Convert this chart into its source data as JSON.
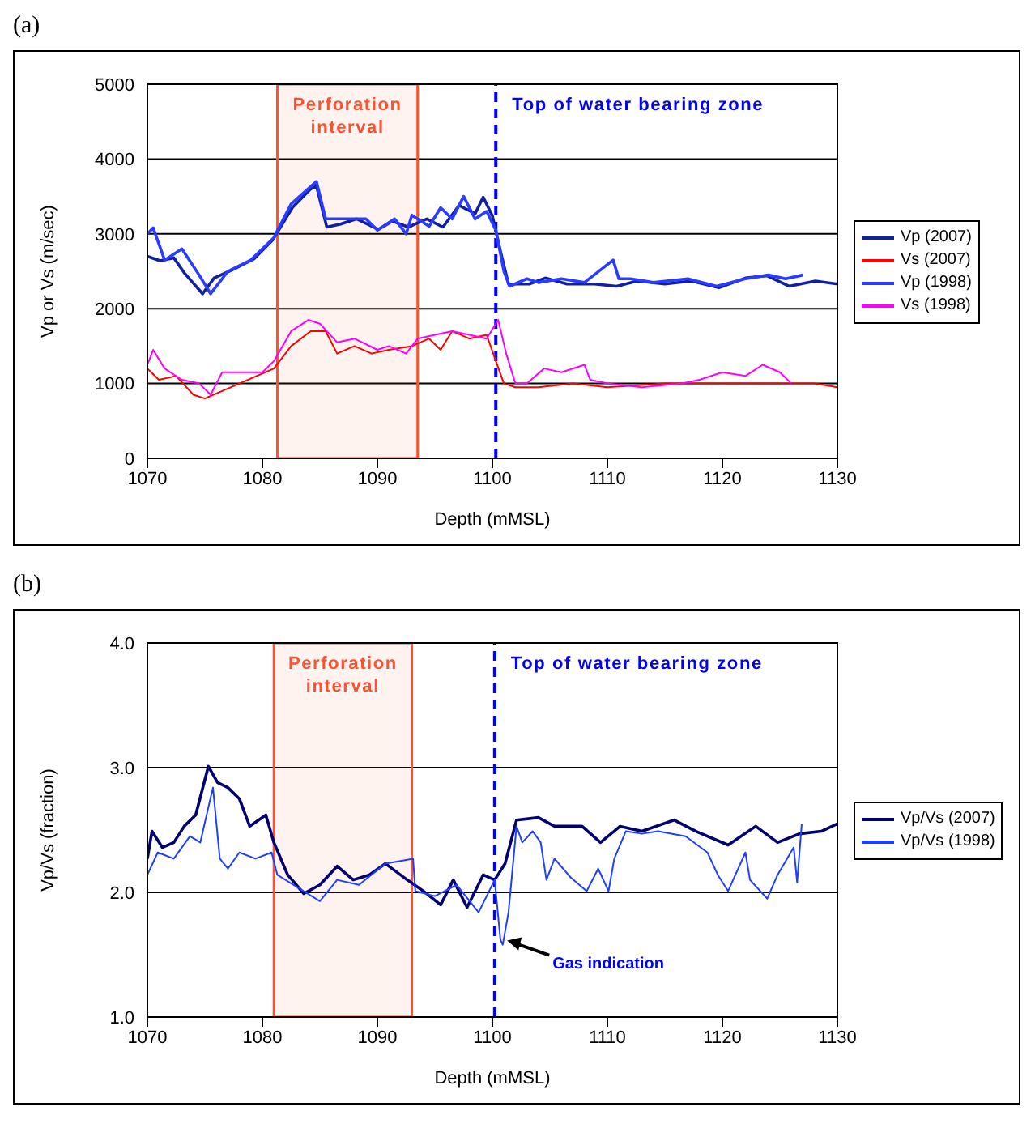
{
  "chart_data": [
    {
      "type": "line",
      "title": "(a)",
      "xlabel": "Depth (mMSL)",
      "ylabel": "Vp or Vs (m/sec)",
      "xlim": [
        1070,
        1130
      ],
      "xticks": [
        1070,
        1080,
        1090,
        1100,
        1110,
        1120,
        1130
      ],
      "ylim": [
        0,
        5000
      ],
      "yticks": [
        0,
        1000,
        2000,
        3000,
        4000,
        5000
      ],
      "grid": "y",
      "legend": "right",
      "marker": "none",
      "line_style": "solid",
      "series": [
        {
          "name": "Vp (2007)",
          "color": "#1020a0",
          "x": [
            1070,
            1071.1,
            1072.3,
            1073.2,
            1074.8,
            1075.8,
            1077.4,
            1079.3,
            1080.9,
            1082.6,
            1084.2,
            1084.7,
            1085.6,
            1086.8,
            1088.2,
            1090.1,
            1091.3,
            1092.7,
            1094.3,
            1095.7,
            1097.1,
            1098.5,
            1099.2,
            1100,
            1100.7,
            1101.4,
            1103.2,
            1104.6,
            1106.5,
            1108.9,
            1110.8,
            1112.6,
            1115,
            1117.3,
            1119.7,
            1122,
            1123.9,
            1125.8,
            1128.1,
            1130
          ],
          "values": [
            2700,
            2640,
            2680,
            2480,
            2200,
            2410,
            2520,
            2670,
            2920,
            3350,
            3600,
            3640,
            3090,
            3130,
            3200,
            3060,
            3170,
            3090,
            3200,
            3090,
            3380,
            3270,
            3490,
            3240,
            2770,
            2330,
            2330,
            2410,
            2330,
            2330,
            2300,
            2370,
            2330,
            2370,
            2280,
            2410,
            2440,
            2300,
            2370,
            2330
          ]
        },
        {
          "name": "Vs (2007)",
          "color": "#ff0000",
          "x": [
            1070,
            1071,
            1072.5,
            1074,
            1075,
            1076.5,
            1078,
            1079.5,
            1081,
            1082.5,
            1084.2,
            1085.5,
            1086.5,
            1088,
            1089.5,
            1091,
            1093,
            1094.5,
            1095.5,
            1096.5,
            1098,
            1099.5,
            1100.3,
            1101,
            1102,
            1104,
            1107,
            1110,
            1115,
            1120,
            1125,
            1128,
            1130
          ],
          "values": [
            1200,
            1050,
            1100,
            850,
            800,
            900,
            1000,
            1100,
            1200,
            1500,
            1700,
            1700,
            1400,
            1500,
            1400,
            1450,
            1500,
            1600,
            1450,
            1700,
            1600,
            1650,
            1300,
            1000,
            950,
            950,
            1000,
            950,
            1000,
            1000,
            1000,
            1000,
            950
          ]
        },
        {
          "name": "Vp (1998)",
          "color": "#2a3cff",
          "x": [
            1070,
            1070.5,
            1071.5,
            1073,
            1074.5,
            1075.5,
            1077,
            1079,
            1081,
            1082.5,
            1084.7,
            1085.5,
            1087,
            1089,
            1090,
            1091.5,
            1092.5,
            1093,
            1094.5,
            1095.5,
            1096.5,
            1097.5,
            1098.5,
            1099.5,
            1100.3,
            1101,
            1101.5,
            1103,
            1104,
            1106,
            1108,
            1110.5,
            1111,
            1112,
            1114,
            1117,
            1119.5,
            1122,
            1124,
            1125.5,
            1127
          ],
          "values": [
            3000,
            3080,
            2650,
            2800,
            2450,
            2200,
            2500,
            2650,
            2950,
            3400,
            3700,
            3200,
            3200,
            3200,
            3050,
            3200,
            3000,
            3250,
            3100,
            3350,
            3200,
            3500,
            3200,
            3300,
            3050,
            2500,
            2300,
            2400,
            2350,
            2400,
            2350,
            2650,
            2400,
            2400,
            2350,
            2400,
            2300,
            2400,
            2450,
            2400,
            2450
          ]
        },
        {
          "name": "Vs (1998)",
          "color": "#ff00ff",
          "x": [
            1070,
            1070.5,
            1071.5,
            1073,
            1074.5,
            1075.5,
            1076.5,
            1078,
            1080,
            1081,
            1082.5,
            1084,
            1085,
            1086.5,
            1088,
            1090,
            1091,
            1092.5,
            1093.5,
            1095,
            1096.5,
            1098,
            1099.5,
            1100.5,
            1101.2,
            1102,
            1103,
            1104.5,
            1106,
            1108,
            1108.5,
            1110,
            1113,
            1116.5,
            1118,
            1120,
            1122,
            1123.5,
            1125,
            1126
          ],
          "values": [
            1250,
            1450,
            1200,
            1050,
            1000,
            850,
            1150,
            1150,
            1150,
            1300,
            1700,
            1850,
            1800,
            1550,
            1600,
            1450,
            1500,
            1400,
            1600,
            1650,
            1700,
            1650,
            1600,
            1850,
            1400,
            1000,
            1000,
            1200,
            1150,
            1250,
            1050,
            1000,
            950,
            1000,
            1050,
            1150,
            1100,
            1250,
            1150,
            1000
          ]
        }
      ],
      "bands": [
        {
          "axis": "x",
          "from": 1081.3,
          "to": 1093.5,
          "label": "Perforation interval",
          "color": "#ff5030"
        }
      ],
      "ref_lines": [
        {
          "axis": "x",
          "value": 1100.3,
          "label": "Top of water bearing zone",
          "color": "#0000ff",
          "line_style": "dashed"
        }
      ]
    },
    {
      "type": "line",
      "title": "(b)",
      "xlabel": "Depth (mMSL)",
      "ylabel": "Vp/Vs (fraction)",
      "xlim": [
        1070,
        1130
      ],
      "xticks": [
        1070,
        1080,
        1090,
        1100,
        1110,
        1120,
        1130
      ],
      "ylim": [
        1,
        4
      ],
      "yticks": [
        {
          "value": 1,
          "label": "1.0"
        },
        {
          "value": 2,
          "label": "2.0"
        },
        {
          "value": 3,
          "label": "3.0"
        },
        {
          "value": 4,
          "label": "4.0"
        }
      ],
      "grid": "y",
      "legend": "right",
      "marker": "none",
      "line_style": "solid",
      "series": [
        {
          "name": "Vp/Vs (2007)",
          "color": "#000070",
          "x": [
            1070,
            1070.4,
            1071.3,
            1072.3,
            1073.2,
            1074.2,
            1075.3,
            1076.1,
            1077,
            1078,
            1078.9,
            1080.3,
            1081,
            1082.2,
            1083.6,
            1085,
            1086.5,
            1087.9,
            1089.3,
            1090.7,
            1092.6,
            1094,
            1095.5,
            1096.6,
            1097.8,
            1099.2,
            1100.2,
            1101.1,
            1102.1,
            1104,
            1105.4,
            1107.8,
            1109.4,
            1111.1,
            1113,
            1115.8,
            1117.7,
            1120.5,
            1122.9,
            1124.8,
            1126.7,
            1128.6,
            1130
          ],
          "values": [
            2.27,
            2.49,
            2.36,
            2.4,
            2.53,
            2.62,
            3.01,
            2.88,
            2.84,
            2.75,
            2.53,
            2.62,
            2.4,
            2.14,
            1.99,
            2.06,
            2.21,
            2.1,
            2.14,
            2.23,
            2.1,
            2.01,
            1.9,
            2.1,
            1.88,
            2.14,
            2.1,
            2.23,
            2.58,
            2.6,
            2.53,
            2.53,
            2.4,
            2.53,
            2.49,
            2.58,
            2.49,
            2.38,
            2.53,
            2.4,
            2.47,
            2.49,
            2.55
          ]
        },
        {
          "name": "Vp/Vs (1998)",
          "color": "#1f3fff",
          "x": [
            1070,
            1070.9,
            1072.3,
            1073.7,
            1074.6,
            1075.7,
            1076.3,
            1077,
            1078,
            1079.4,
            1080.8,
            1081.3,
            1082.7,
            1085,
            1086.5,
            1088.4,
            1090.7,
            1093.1,
            1093.3,
            1095,
            1096.9,
            1098.8,
            1100.2,
            1100.7,
            1100.9,
            1101.4,
            1102.1,
            1102.6,
            1103.5,
            1104.2,
            1104.7,
            1105.4,
            1106.8,
            1108.2,
            1109.2,
            1110.1,
            1110.6,
            1111.6,
            1113,
            1114.4,
            1116.8,
            1118.7,
            1119.6,
            1120.5,
            1122,
            1122.4,
            1123.9,
            1124.8,
            1126.2,
            1126.5,
            1126.9
          ],
          "values": [
            2.14,
            2.32,
            2.27,
            2.45,
            2.4,
            2.84,
            2.27,
            2.19,
            2.32,
            2.27,
            2.32,
            2.14,
            2.06,
            1.93,
            2.1,
            2.06,
            2.23,
            2.27,
            2.01,
            1.97,
            2.06,
            1.84,
            2.1,
            1.62,
            1.58,
            1.84,
            2.53,
            2.4,
            2.49,
            2.4,
            2.1,
            2.27,
            2.12,
            2.01,
            2.19,
            2.01,
            2.27,
            2.49,
            2.47,
            2.49,
            2.45,
            2.32,
            2.14,
            2.01,
            2.32,
            2.1,
            1.95,
            2.14,
            2.36,
            2.08,
            2.55
          ]
        }
      ],
      "bands": [
        {
          "axis": "x",
          "from": 1081,
          "to": 1093,
          "label": "Perforation interval",
          "color": "#ff5030"
        }
      ],
      "ref_lines": [
        {
          "axis": "x",
          "value": 1100.2,
          "label": "Top of water bearing zone",
          "color": "#0000ff",
          "line_style": "dashed"
        }
      ],
      "annotations": [
        {
          "text": "Gas indication",
          "x": 1101,
          "y": 1.6
        }
      ]
    }
  ]
}
